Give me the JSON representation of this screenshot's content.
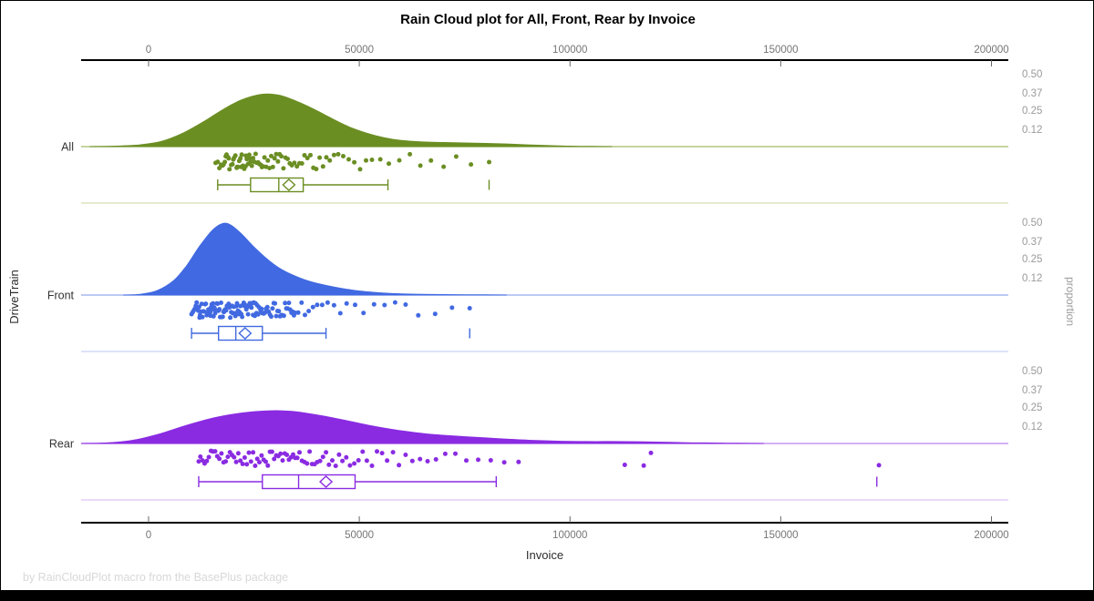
{
  "title": "Rain Cloud plot for All, Front, Rear by Invoice",
  "footer": "by RainCloudPlot macro from the BasePlus package",
  "colors": {
    "axis_line": "#000000",
    "tick_text": "#767676",
    "proportion_text": "#9a9a9a",
    "category_text": "#333333",
    "footer_text": "#d8d8d8"
  },
  "chart_data": {
    "type": "raincloud",
    "title": "Rain Cloud plot for All, Front, Rear by Invoice",
    "xlabel": "Invoice",
    "ylabel_left": "DriveTrain",
    "ylabel_right": "proportion",
    "x_domain": [
      -16000,
      204000
    ],
    "x_ticks": [
      0,
      50000,
      100000,
      150000,
      200000
    ],
    "x_tick_labels": [
      "0",
      "50000",
      "100000",
      "150000",
      "200000"
    ],
    "proportion_ticks": [
      0.5,
      0.37,
      0.25,
      0.12
    ],
    "proportion_tick_labels": [
      "0.50",
      "0.37",
      "0.25",
      "0.12"
    ],
    "grid": false,
    "groups": [
      {
        "label": "All",
        "color": "#6B8E23",
        "baseline_color": "#a3bb68",
        "separator_color": "#d4dfb0",
        "box": {
          "whisker_low": 16400,
          "q1": 24200,
          "median": 30900,
          "mean": 33300,
          "q3": 36700,
          "whisker_high": 56800,
          "outliers": [
            80800
          ]
        },
        "density": [
          [
            -14000,
            0
          ],
          [
            -8000,
            0.003
          ],
          [
            -2000,
            0.012
          ],
          [
            3000,
            0.035
          ],
          [
            8000,
            0.09
          ],
          [
            13000,
            0.17
          ],
          [
            18000,
            0.26
          ],
          [
            22000,
            0.32
          ],
          [
            26000,
            0.355
          ],
          [
            29000,
            0.36
          ],
          [
            32000,
            0.345
          ],
          [
            36000,
            0.3
          ],
          [
            40000,
            0.245
          ],
          [
            44000,
            0.185
          ],
          [
            48000,
            0.13
          ],
          [
            52000,
            0.09
          ],
          [
            56000,
            0.06
          ],
          [
            60000,
            0.042
          ],
          [
            65000,
            0.032
          ],
          [
            70000,
            0.028
          ],
          [
            75000,
            0.025
          ],
          [
            80000,
            0.022
          ],
          [
            85000,
            0.018
          ],
          [
            90000,
            0.012
          ],
          [
            95000,
            0.007
          ],
          [
            100000,
            0.003
          ],
          [
            105000,
            0.001
          ],
          [
            110000,
            0
          ]
        ],
        "points": [
          15900,
          16400,
          16800,
          17200,
          17500,
          17800,
          18100,
          18300,
          18500,
          18900,
          19000,
          19200,
          19600,
          19900,
          20100,
          20300,
          20600,
          20900,
          21000,
          21200,
          21500,
          21800,
          22000,
          22100,
          22400,
          22700,
          23000,
          23100,
          23300,
          23600,
          23900,
          24000,
          24200,
          24500,
          24800,
          25100,
          25400,
          25700,
          26000,
          26300,
          26600,
          26900,
          27200,
          27500,
          27900,
          28300,
          28700,
          29100,
          29500,
          29900,
          30300,
          30700,
          31100,
          31500,
          32000,
          32500,
          33000,
          33500,
          34000,
          34600,
          35200,
          35800,
          36400,
          37000,
          37700,
          38400,
          39100,
          39800,
          40600,
          41400,
          42200,
          43000,
          44000,
          45000,
          46200,
          47500,
          48800,
          50200,
          51600,
          53000,
          55000,
          57000,
          59500,
          62000,
          64500,
          67000,
          70000,
          73000,
          76500,
          80800
        ]
      },
      {
        "label": "Front",
        "color": "#4169E1",
        "baseline_color": "#93aaec",
        "separator_color": "#c5d1f5",
        "box": {
          "whisker_low": 10200,
          "q1": 16600,
          "median": 20700,
          "mean": 22900,
          "q3": 27000,
          "whisker_high": 42100,
          "outliers": [
            76200
          ]
        },
        "density": [
          [
            -6000,
            0
          ],
          [
            -2000,
            0.005
          ],
          [
            2000,
            0.03
          ],
          [
            6000,
            0.1
          ],
          [
            9000,
            0.2
          ],
          [
            12000,
            0.33
          ],
          [
            15000,
            0.44
          ],
          [
            17500,
            0.49
          ],
          [
            19500,
            0.48
          ],
          [
            22000,
            0.42
          ],
          [
            25000,
            0.33
          ],
          [
            28000,
            0.25
          ],
          [
            31000,
            0.185
          ],
          [
            34000,
            0.14
          ],
          [
            37000,
            0.105
          ],
          [
            40000,
            0.08
          ],
          [
            44000,
            0.055
          ],
          [
            48000,
            0.035
          ],
          [
            52000,
            0.022
          ],
          [
            56000,
            0.013
          ],
          [
            60000,
            0.008
          ],
          [
            65000,
            0.005
          ],
          [
            70000,
            0.003
          ],
          [
            75000,
            0.002
          ],
          [
            80000,
            0.001
          ],
          [
            85000,
            0
          ]
        ],
        "points": [
          10200,
          10500,
          10800,
          11000,
          11200,
          11400,
          11600,
          11800,
          12000,
          12100,
          12200,
          12400,
          12600,
          12800,
          13000,
          13200,
          13400,
          13600,
          13800,
          14000,
          14200,
          14400,
          14600,
          14700,
          14800,
          15000,
          15200,
          15300,
          15400,
          15600,
          15800,
          16000,
          16200,
          16400,
          16600,
          16800,
          17000,
          17200,
          17400,
          17600,
          17800,
          17900,
          18000,
          18200,
          18400,
          18600,
          18800,
          19000,
          19200,
          19400,
          19600,
          19800,
          20000,
          20200,
          20400,
          20600,
          20800,
          21000,
          21200,
          21400,
          21600,
          21800,
          22000,
          22200,
          22400,
          22600,
          22800,
          23000,
          23200,
          23400,
          23600,
          23800,
          24000,
          24200,
          24400,
          24600,
          24800,
          25000,
          25200,
          25400,
          25600,
          25800,
          26000,
          26200,
          26400,
          26600,
          26800,
          27000,
          27300,
          27600,
          27900,
          28200,
          28500,
          28800,
          29100,
          29400,
          29700,
          30000,
          30300,
          30600,
          30900,
          31200,
          31500,
          31800,
          32100,
          32400,
          32700,
          33000,
          33300,
          33600,
          33900,
          34200,
          34500,
          34800,
          35500,
          36300,
          37100,
          38000,
          39000,
          40000,
          41200,
          42500,
          44000,
          45500,
          47000,
          49000,
          51000,
          53500,
          56000,
          58500,
          61000,
          64000,
          68000,
          72000,
          76200
        ]
      },
      {
        "label": "Rear",
        "color": "#8A2BE2",
        "baseline_color": "#bb80ec",
        "separator_color": "#ddc4f5",
        "box": {
          "whisker_low": 11900,
          "q1": 27000,
          "median": 35600,
          "mean": 42100,
          "q3": 49000,
          "whisker_high": 82500,
          "outliers": [
            172800
          ]
        },
        "density": [
          [
            -16000,
            0
          ],
          [
            -10000,
            0.004
          ],
          [
            -4000,
            0.02
          ],
          [
            2000,
            0.06
          ],
          [
            8000,
            0.115
          ],
          [
            14000,
            0.165
          ],
          [
            20000,
            0.2
          ],
          [
            25000,
            0.218
          ],
          [
            30000,
            0.225
          ],
          [
            34000,
            0.22
          ],
          [
            38000,
            0.205
          ],
          [
            43000,
            0.18
          ],
          [
            48000,
            0.15
          ],
          [
            53000,
            0.12
          ],
          [
            58000,
            0.095
          ],
          [
            63000,
            0.075
          ],
          [
            68000,
            0.06
          ],
          [
            74000,
            0.048
          ],
          [
            80000,
            0.038
          ],
          [
            86000,
            0.028
          ],
          [
            92000,
            0.02
          ],
          [
            98000,
            0.015
          ],
          [
            104000,
            0.013
          ],
          [
            110000,
            0.013
          ],
          [
            116000,
            0.012
          ],
          [
            122000,
            0.009
          ],
          [
            128000,
            0.005
          ],
          [
            134000,
            0.003
          ],
          [
            140000,
            0.001
          ],
          [
            146000,
            0
          ]
        ],
        "points": [
          11900,
          12300,
          12800,
          13300,
          13800,
          14300,
          14800,
          15300,
          15800,
          16300,
          16800,
          17300,
          17800,
          18300,
          18800,
          19300,
          19800,
          20300,
          20800,
          21300,
          21800,
          22300,
          22800,
          23300,
          23800,
          24300,
          24800,
          25300,
          25800,
          26300,
          26800,
          27300,
          27800,
          28300,
          28800,
          29300,
          29800,
          30300,
          30800,
          31300,
          31800,
          32300,
          32800,
          33300,
          33800,
          34300,
          34800,
          35300,
          35800,
          36400,
          37000,
          37600,
          38200,
          38800,
          39400,
          40000,
          40700,
          41400,
          42100,
          42800,
          43600,
          44400,
          45200,
          46000,
          46900,
          47800,
          48800,
          49800,
          50800,
          51800,
          53000,
          54200,
          55400,
          56600,
          58000,
          59400,
          61000,
          62600,
          64400,
          66200,
          68200,
          70400,
          72800,
          75400,
          78200,
          81200,
          84400,
          87800,
          113000,
          117500,
          119200,
          173300
        ]
      }
    ]
  }
}
